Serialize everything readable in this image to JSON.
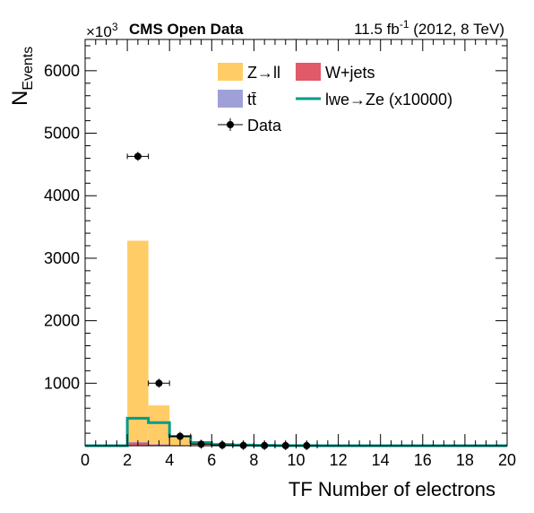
{
  "chart_data": {
    "type": "bar",
    "header": {
      "left_bold": "CMS Open Data",
      "lumi": "11.5 fb",
      "lumi_exp": "-1",
      "energy": " (2012, 8 TeV)"
    },
    "multiplier": {
      "base": "×10",
      "exp": "3"
    },
    "ylabel": {
      "main": "N",
      "sub": "Events"
    },
    "xlabel": "TF Number of electrons",
    "xlim": [
      0,
      20
    ],
    "ylim": [
      0,
      6500
    ],
    "xticks": [
      0,
      2,
      4,
      6,
      8,
      10,
      12,
      14,
      16,
      18,
      20
    ],
    "yticks": [
      1000,
      2000,
      3000,
      4000,
      5000,
      6000
    ],
    "bin_edges": [
      0,
      1,
      2,
      3,
      4,
      5,
      6,
      7,
      8,
      9,
      10,
      11,
      12,
      13,
      14,
      15,
      16,
      17,
      18,
      19,
      20
    ],
    "stack": [
      {
        "name": "W+jets",
        "color": "#e05a6a",
        "values": [
          0,
          0,
          50,
          20,
          5,
          2,
          0,
          0,
          0,
          0,
          0,
          0,
          0,
          0,
          0,
          0,
          0,
          0,
          0,
          0
        ]
      },
      {
        "name": "tt̄",
        "color": "#a0a0d8",
        "values": [
          0,
          0,
          10,
          5,
          2,
          1,
          0,
          0,
          0,
          0,
          0,
          0,
          0,
          0,
          0,
          0,
          0,
          0,
          0,
          0
        ]
      },
      {
        "name": "Z→ll",
        "color": "#ffcc66",
        "values": [
          0,
          0,
          3220,
          620,
          120,
          30,
          10,
          5,
          2,
          1,
          0,
          0,
          0,
          0,
          0,
          0,
          0,
          0,
          0,
          0
        ]
      }
    ],
    "signal": {
      "name": "lwe→Ze (x10000)",
      "color": "#009b8c",
      "values": [
        0,
        0,
        440,
        370,
        150,
        50,
        20,
        10,
        5,
        2,
        1,
        0,
        0,
        0,
        0,
        0,
        0,
        0,
        0,
        0
      ]
    },
    "data": {
      "name": "Data",
      "x": [
        2.5,
        3.5,
        4.5,
        5.5,
        6.5,
        7.5,
        8.5,
        9.5,
        10.5
      ],
      "y": [
        4630,
        1000,
        150,
        25,
        10,
        5,
        3,
        2,
        1
      ],
      "xerr": 0.5
    },
    "legend": [
      {
        "label": "Z→ll",
        "kind": "box",
        "color": "#ffcc66"
      },
      {
        "label": "W+jets",
        "kind": "box",
        "color": "#e05a6a"
      },
      {
        "label": "tt̄",
        "kind": "box",
        "color": "#a0a0d8"
      },
      {
        "label": "lwe→Ze (x10000)",
        "kind": "line",
        "color": "#009b8c"
      },
      {
        "label": "Data",
        "kind": "marker",
        "color": "#000000"
      }
    ]
  }
}
